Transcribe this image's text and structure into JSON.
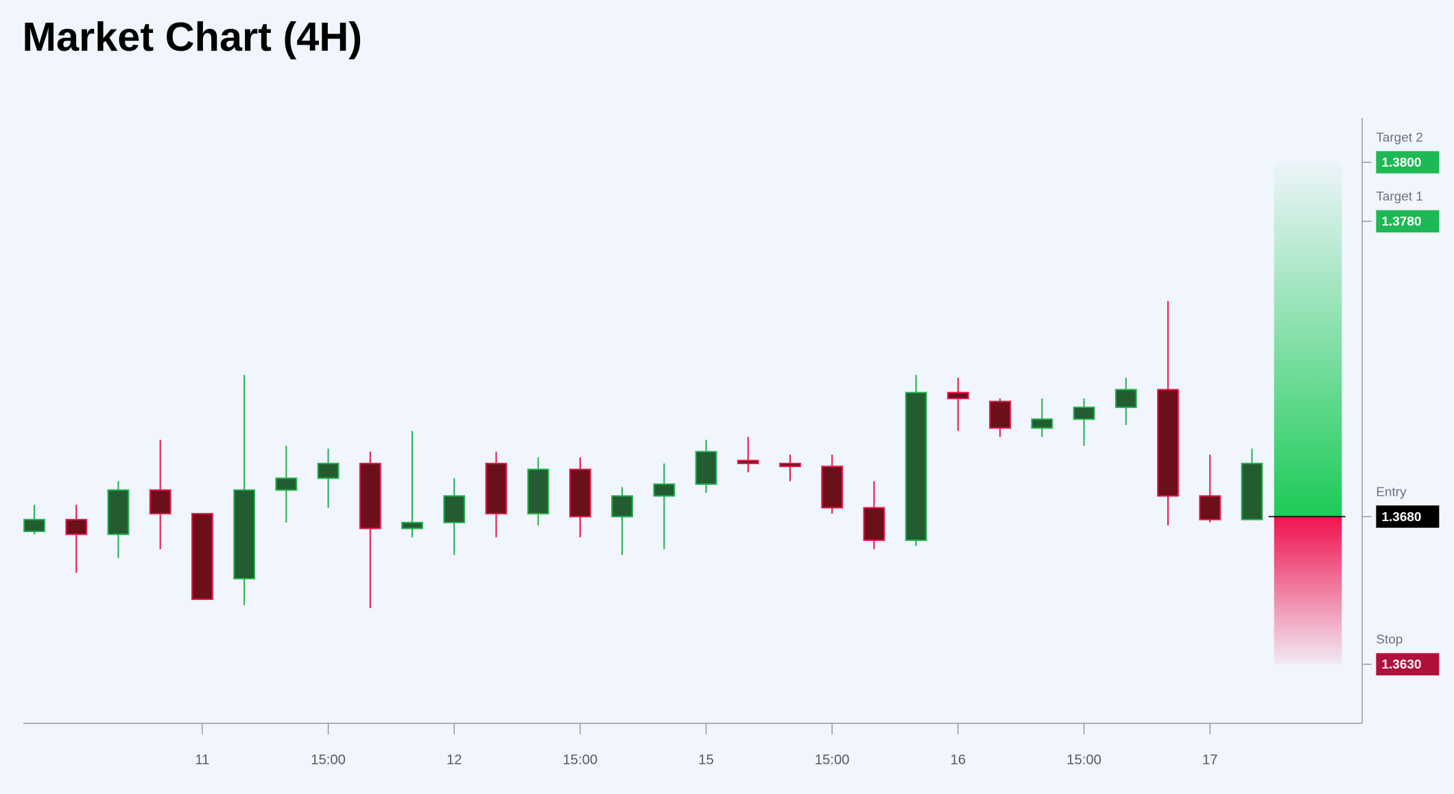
{
  "chart_data": {
    "type": "candlestick",
    "title": "Market Chart (4H)",
    "categories": [
      null,
      null,
      null,
      null,
      "11",
      null,
      null,
      "15:00",
      null,
      null,
      "12",
      null,
      null,
      "15:00",
      null,
      null,
      "15",
      null,
      null,
      "15:00",
      null,
      null,
      "16",
      null,
      null,
      "15:00",
      null,
      null,
      "17",
      null
    ],
    "open": [
      1.3675,
      1.3679,
      1.3674,
      1.3689,
      1.3681,
      1.3659,
      1.3689,
      1.3693,
      1.3698,
      1.3676,
      1.3678,
      1.3698,
      1.3681,
      1.3696,
      1.368,
      1.3687,
      1.3691,
      1.3699,
      1.3698,
      1.3697,
      1.3683,
      1.3672,
      1.3722,
      1.3719,
      1.371,
      1.3713,
      1.3717,
      1.3723,
      1.3687,
      1.3679
    ],
    "high": [
      1.3684,
      1.3684,
      1.3692,
      1.3706,
      1.3681,
      1.3728,
      1.3704,
      1.3703,
      1.3702,
      1.3709,
      1.3693,
      1.3702,
      1.37,
      1.37,
      1.369,
      1.3698,
      1.3706,
      1.3707,
      1.3701,
      1.3701,
      1.3692,
      1.3728,
      1.3727,
      1.372,
      1.372,
      1.372,
      1.3727,
      1.3753,
      1.3701,
      1.3703
    ],
    "low": [
      1.3674,
      1.3661,
      1.3666,
      1.3669,
      1.3652,
      1.365,
      1.3678,
      1.3683,
      1.3649,
      1.3673,
      1.3667,
      1.3673,
      1.3677,
      1.3673,
      1.3667,
      1.3669,
      1.3688,
      1.3695,
      1.3692,
      1.3681,
      1.3669,
      1.367,
      1.3709,
      1.3707,
      1.3707,
      1.3704,
      1.3711,
      1.3677,
      1.3678,
      1.3679
    ],
    "close": [
      1.3679,
      1.3674,
      1.3689,
      1.3681,
      1.3652,
      1.3689,
      1.3693,
      1.3698,
      1.3676,
      1.3678,
      1.3687,
      1.3681,
      1.3696,
      1.368,
      1.3687,
      1.3691,
      1.3702,
      1.3698,
      1.3697,
      1.3683,
      1.3672,
      1.3722,
      1.372,
      1.371,
      1.3713,
      1.3717,
      1.3723,
      1.3687,
      1.3679,
      1.3698
    ],
    "up_color": "#22b14c",
    "down_color": "#e8174a",
    "ylim": [
      1.361,
      1.3815
    ],
    "levels": [
      {
        "name": "Target 2",
        "value": 1.38,
        "label": "1.3800",
        "color": "#1db954"
      },
      {
        "name": "Target 1",
        "value": 1.378,
        "label": "1.3780",
        "color": "#1db954"
      },
      {
        "name": "Entry",
        "value": 1.368,
        "label": "1.3680",
        "color": "#000000"
      },
      {
        "name": "Stop",
        "value": 1.363,
        "label": "1.3630",
        "color": "#b0103a"
      }
    ]
  }
}
